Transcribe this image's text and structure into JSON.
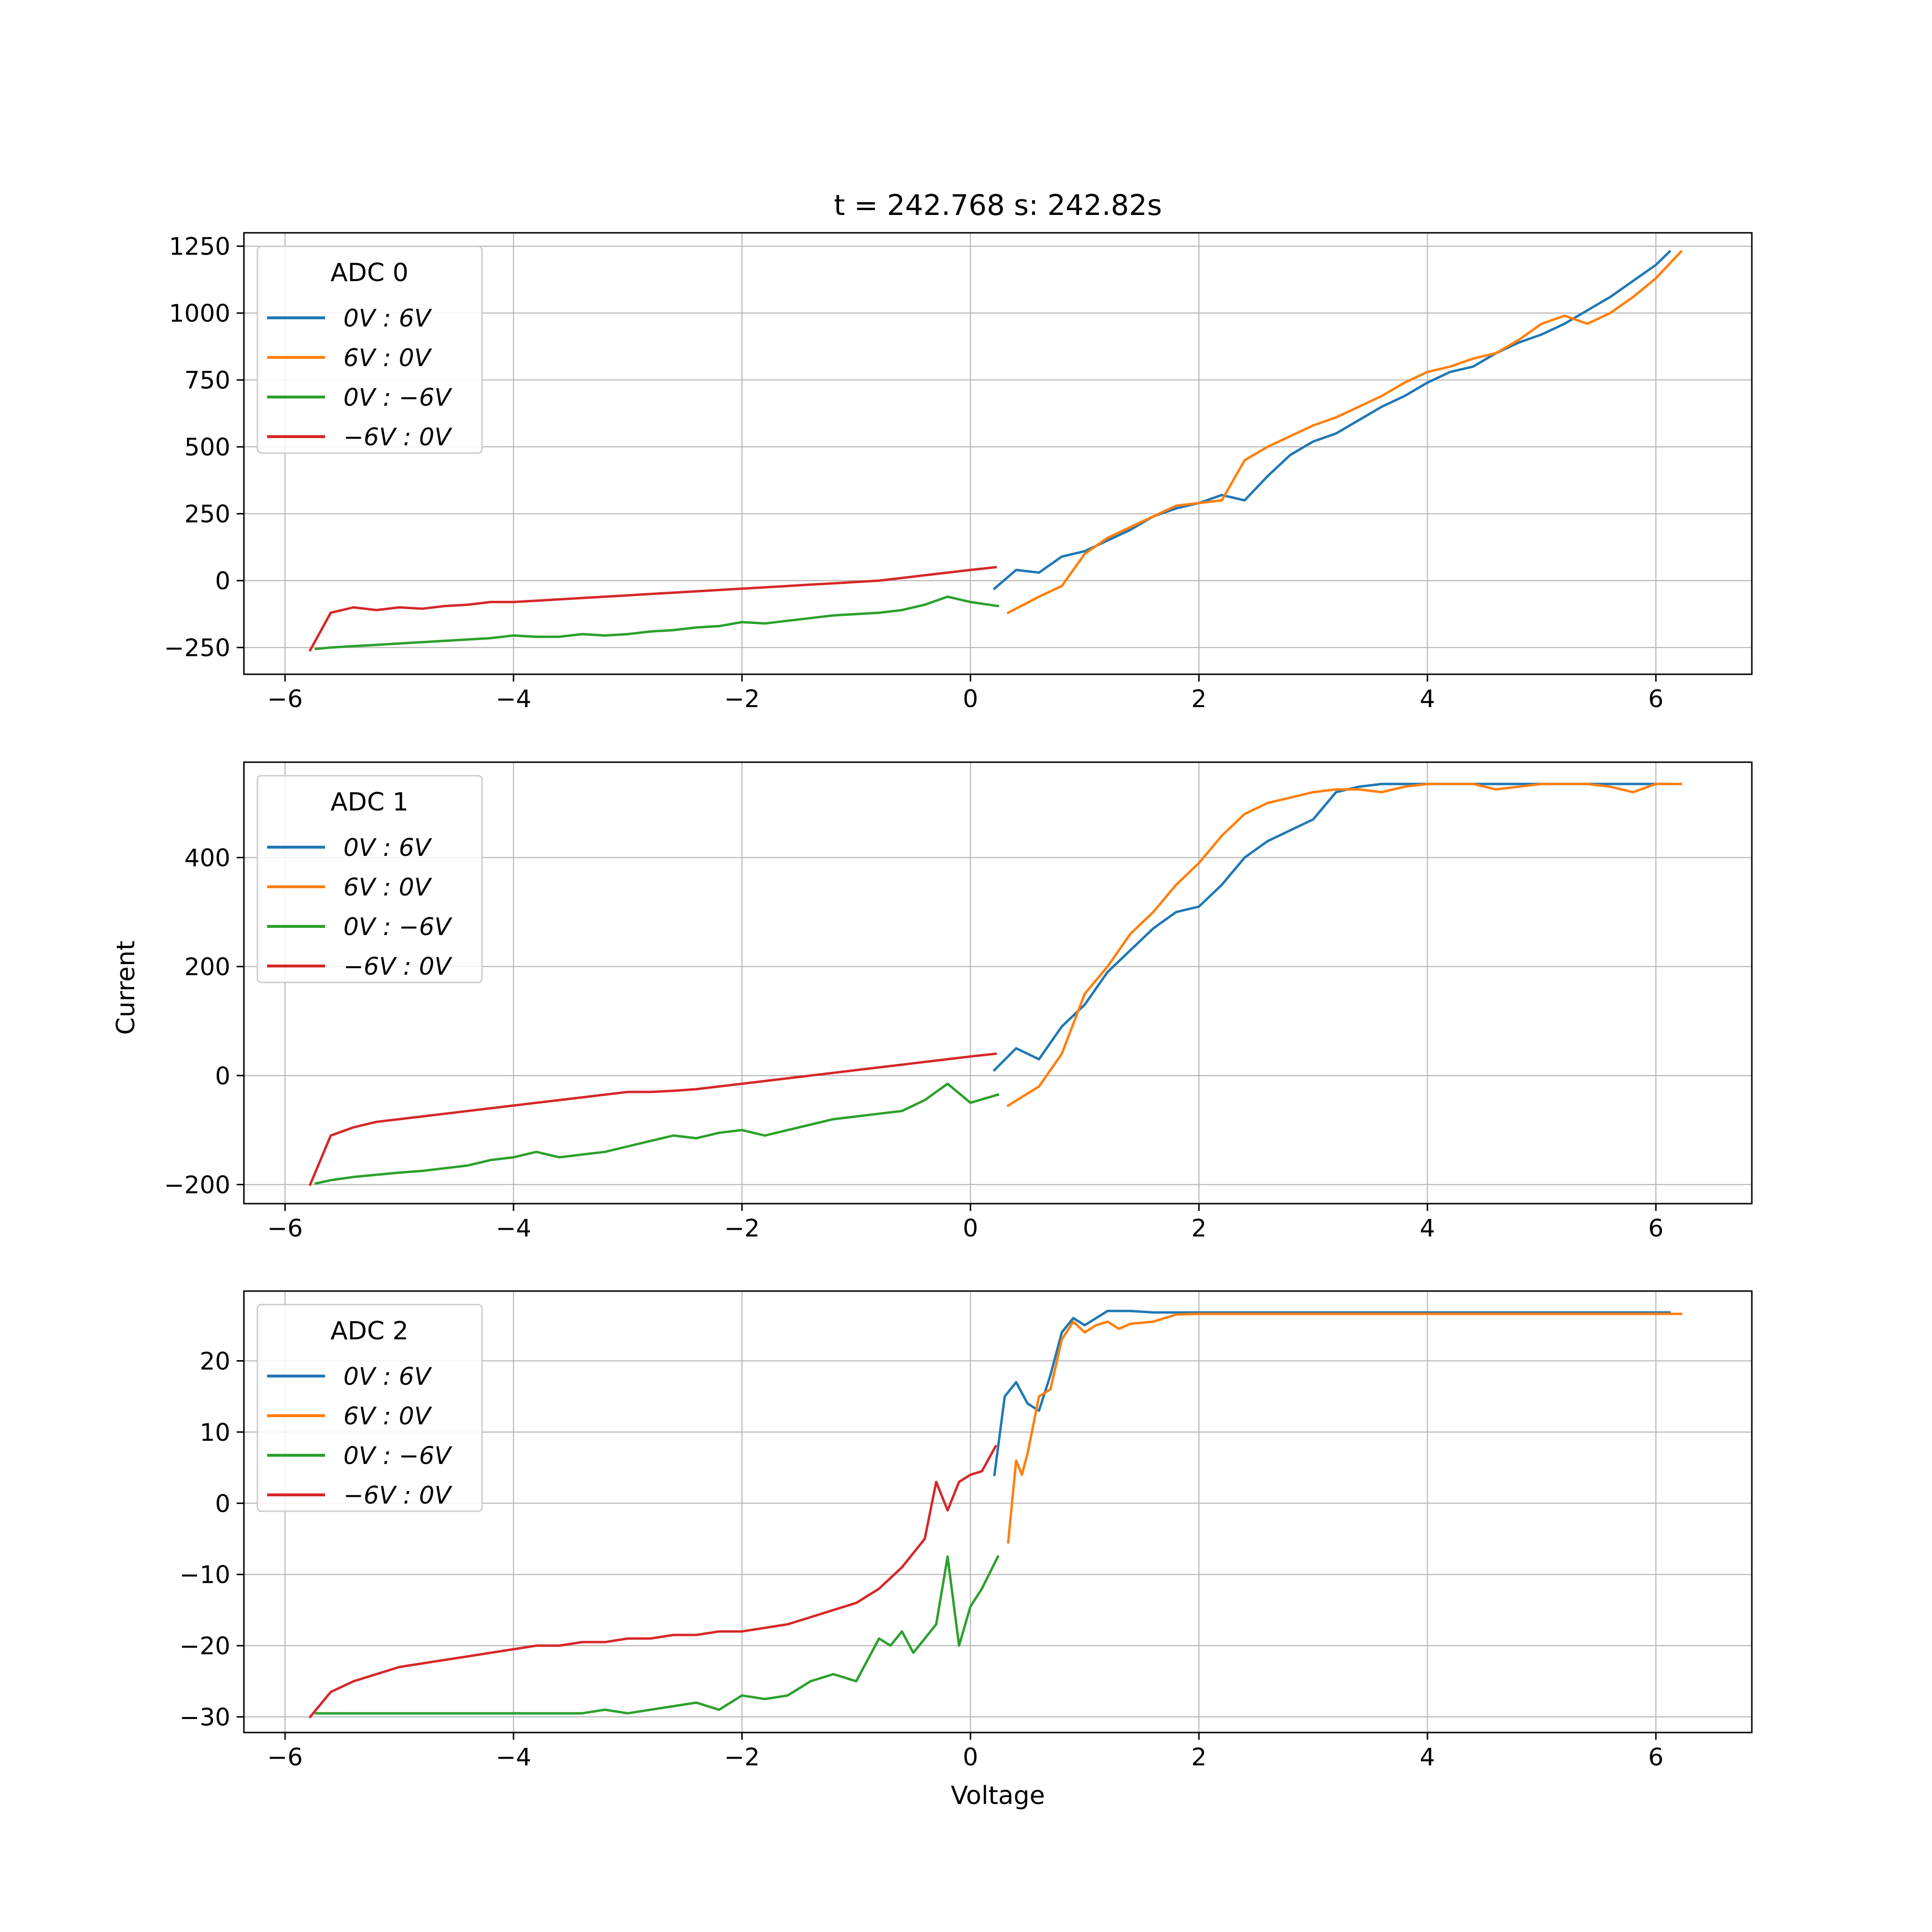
{
  "figure": {
    "title": "t = 242.768 s: 242.82s",
    "xlabel": "Voltage",
    "ylabel": "Current"
  },
  "series_colors": [
    "#1f77b4",
    "#ff7f0e",
    "#2ca02c",
    "#d62728"
  ],
  "chart_data": [
    {
      "type": "line",
      "legend_title": "ADC 0",
      "legend_position": "upper-left",
      "grid": true,
      "xlim": [
        -6.36,
        6.84
      ],
      "ylim": [
        -350,
        1300
      ],
      "xticks": [
        -6,
        -4,
        -2,
        0,
        2,
        4,
        6
      ],
      "xtick_labels": [
        "−6",
        "−4",
        "−2",
        "0",
        "2",
        "4",
        "6"
      ],
      "yticks": [
        -250,
        0,
        250,
        500,
        750,
        1000,
        1250
      ],
      "ytick_labels": [
        "−250",
        "0",
        "250",
        "500",
        "750",
        "1000",
        "1250"
      ],
      "series": [
        {
          "name": "0V : 6V",
          "x": [
            0.21,
            0.4,
            0.6,
            0.8,
            1.0,
            1.2,
            1.4,
            1.6,
            1.8,
            2.0,
            2.2,
            2.4,
            2.6,
            2.8,
            3.0,
            3.2,
            3.4,
            3.6,
            3.8,
            4.0,
            4.2,
            4.4,
            4.6,
            4.8,
            5.0,
            5.2,
            5.4,
            5.6,
            5.8,
            6.0,
            6.12
          ],
          "y": [
            -30,
            40,
            30,
            90,
            110,
            150,
            190,
            240,
            270,
            290,
            320,
            300,
            390,
            470,
            520,
            550,
            600,
            650,
            690,
            740,
            780,
            800,
            850,
            890,
            920,
            960,
            1010,
            1060,
            1120,
            1180,
            1230
          ]
        },
        {
          "name": "6V : 0V",
          "x": [
            6.22,
            6.0,
            5.8,
            5.6,
            5.4,
            5.2,
            5.0,
            4.8,
            4.6,
            4.4,
            4.2,
            4.0,
            3.8,
            3.6,
            3.4,
            3.2,
            3.0,
            2.8,
            2.6,
            2.4,
            2.2,
            2.0,
            1.8,
            1.6,
            1.4,
            1.2,
            1.0,
            0.8,
            0.6,
            0.33
          ],
          "y": [
            1230,
            1130,
            1060,
            1000,
            960,
            990,
            960,
            900,
            850,
            830,
            800,
            780,
            740,
            690,
            650,
            610,
            580,
            540,
            500,
            450,
            300,
            290,
            280,
            240,
            200,
            160,
            100,
            -20,
            -60,
            -120
          ]
        },
        {
          "name": "0V : −6V",
          "x": [
            0.24,
            0.0,
            -0.2,
            -0.4,
            -0.6,
            -0.8,
            -1.0,
            -1.2,
            -1.4,
            -1.6,
            -1.8,
            -2.0,
            -2.2,
            -2.4,
            -2.6,
            -2.8,
            -3.0,
            -3.2,
            -3.4,
            -3.6,
            -3.8,
            -4.0,
            -4.2,
            -4.4,
            -4.6,
            -4.8,
            -5.0,
            -5.2,
            -5.4,
            -5.6,
            -5.73
          ],
          "y": [
            -95,
            -80,
            -60,
            -90,
            -110,
            -120,
            -125,
            -130,
            -140,
            -150,
            -160,
            -155,
            -170,
            -175,
            -185,
            -190,
            -200,
            -205,
            -200,
            -210,
            -210,
            -205,
            -215,
            -220,
            -225,
            -230,
            -235,
            -240,
            -245,
            -250,
            -255
          ]
        },
        {
          "name": "−6V : 0V",
          "x": [
            -5.78,
            -5.6,
            -5.4,
            -5.2,
            -5.0,
            -4.8,
            -4.6,
            -4.4,
            -4.2,
            -4.0,
            -3.8,
            -3.6,
            -3.4,
            -3.2,
            -3.0,
            -2.8,
            -2.6,
            -2.4,
            -2.2,
            -2.0,
            -1.8,
            -1.6,
            -1.4,
            -1.2,
            -1.0,
            -0.8,
            -0.6,
            -0.4,
            -0.2,
            0.0,
            0.22
          ],
          "y": [
            -260,
            -120,
            -100,
            -110,
            -100,
            -105,
            -95,
            -90,
            -80,
            -80,
            -75,
            -70,
            -65,
            -60,
            -55,
            -50,
            -45,
            -40,
            -35,
            -30,
            -25,
            -20,
            -15,
            -10,
            -5,
            0,
            10,
            20,
            30,
            40,
            50
          ]
        }
      ]
    },
    {
      "type": "line",
      "legend_title": "ADC 1",
      "legend_position": "upper-left",
      "grid": true,
      "xlim": [
        -6.36,
        6.84
      ],
      "ylim": [
        -235,
        575
      ],
      "xticks": [
        -6,
        -4,
        -2,
        0,
        2,
        4,
        6
      ],
      "xtick_labels": [
        "−6",
        "−4",
        "−2",
        "0",
        "2",
        "4",
        "6"
      ],
      "yticks": [
        -200,
        0,
        200,
        400
      ],
      "ytick_labels": [
        "−200",
        "0",
        "200",
        "400"
      ],
      "series": [
        {
          "name": "0V : 6V",
          "x": [
            0.21,
            0.4,
            0.6,
            0.8,
            1.0,
            1.2,
            1.4,
            1.6,
            1.8,
            2.0,
            2.2,
            2.4,
            2.6,
            2.8,
            3.0,
            3.2,
            3.4,
            3.6,
            3.8,
            4.0,
            4.2,
            4.4,
            4.6,
            4.8,
            5.0,
            5.2,
            5.4,
            5.6,
            5.8,
            6.0,
            6.12
          ],
          "y": [
            10,
            50,
            30,
            90,
            130,
            190,
            230,
            270,
            300,
            310,
            350,
            400,
            430,
            450,
            470,
            520,
            530,
            535,
            535,
            535,
            535,
            535,
            535,
            535,
            535,
            535,
            535,
            535,
            535,
            535,
            535
          ]
        },
        {
          "name": "6V : 0V",
          "x": [
            6.22,
            6.0,
            5.8,
            5.6,
            5.4,
            5.2,
            5.0,
            4.8,
            4.6,
            4.4,
            4.2,
            4.0,
            3.8,
            3.6,
            3.4,
            3.2,
            3.0,
            2.8,
            2.6,
            2.4,
            2.2,
            2.0,
            1.8,
            1.6,
            1.4,
            1.2,
            1.0,
            0.8,
            0.6,
            0.33
          ],
          "y": [
            535,
            535,
            520,
            530,
            535,
            535,
            535,
            530,
            525,
            535,
            535,
            535,
            530,
            520,
            525,
            525,
            520,
            510,
            500,
            480,
            440,
            390,
            350,
            300,
            260,
            200,
            150,
            40,
            -20,
            -55
          ]
        },
        {
          "name": "0V : −6V",
          "x": [
            0.24,
            0.0,
            -0.2,
            -0.4,
            -0.6,
            -0.8,
            -1.0,
            -1.2,
            -1.4,
            -1.6,
            -1.8,
            -2.0,
            -2.2,
            -2.4,
            -2.6,
            -2.8,
            -3.0,
            -3.2,
            -3.4,
            -3.6,
            -3.8,
            -4.0,
            -4.2,
            -4.4,
            -4.6,
            -4.8,
            -5.0,
            -5.2,
            -5.4,
            -5.6,
            -5.73
          ],
          "y": [
            -35,
            -50,
            -15,
            -45,
            -65,
            -70,
            -75,
            -80,
            -90,
            -100,
            -110,
            -100,
            -105,
            -115,
            -110,
            -120,
            -130,
            -140,
            -145,
            -150,
            -140,
            -150,
            -155,
            -165,
            -170,
            -175,
            -178,
            -182,
            -186,
            -192,
            -198
          ]
        },
        {
          "name": "−6V : 0V",
          "x": [
            -5.78,
            -5.6,
            -5.4,
            -5.2,
            -5.0,
            -4.8,
            -4.6,
            -4.4,
            -4.2,
            -4.0,
            -3.8,
            -3.6,
            -3.4,
            -3.2,
            -3.0,
            -2.8,
            -2.6,
            -2.4,
            -2.2,
            -2.0,
            -1.8,
            -1.6,
            -1.4,
            -1.2,
            -1.0,
            -0.8,
            -0.6,
            -0.4,
            -0.2,
            0.0,
            0.22
          ],
          "y": [
            -200,
            -110,
            -95,
            -85,
            -80,
            -75,
            -70,
            -65,
            -60,
            -55,
            -50,
            -45,
            -40,
            -35,
            -30,
            -30,
            -28,
            -25,
            -20,
            -15,
            -10,
            -5,
            0,
            5,
            10,
            15,
            20,
            25,
            30,
            35,
            40
          ]
        }
      ]
    },
    {
      "type": "line",
      "legend_title": "ADC 2",
      "legend_position": "upper-left",
      "grid": true,
      "xlim": [
        -6.36,
        6.84
      ],
      "ylim": [
        -32.2,
        29.8
      ],
      "xticks": [
        -6,
        -4,
        -2,
        0,
        2,
        4,
        6
      ],
      "xtick_labels": [
        "−6",
        "−4",
        "−2",
        "0",
        "2",
        "4",
        "6"
      ],
      "yticks": [
        -30,
        -20,
        -10,
        0,
        10,
        20
      ],
      "ytick_labels": [
        "−30",
        "−20",
        "−10",
        "0",
        "10",
        "20"
      ],
      "series": [
        {
          "name": "0V : 6V",
          "x": [
            0.21,
            0.3,
            0.4,
            0.5,
            0.6,
            0.7,
            0.8,
            0.9,
            1.0,
            1.1,
            1.2,
            1.4,
            1.6,
            1.8,
            2.0,
            2.5,
            3.0,
            3.5,
            4.0,
            4.5,
            5.0,
            5.5,
            6.0,
            6.12
          ],
          "y": [
            4,
            15,
            17,
            14,
            13,
            18,
            24,
            26,
            25,
            26,
            27,
            27,
            26.8,
            26.8,
            26.8,
            26.8,
            26.8,
            26.8,
            26.8,
            26.8,
            26.8,
            26.8,
            26.8,
            26.8
          ]
        },
        {
          "name": "6V : 0V",
          "x": [
            6.22,
            6.0,
            5.5,
            5.0,
            4.5,
            4.0,
            3.5,
            3.0,
            2.5,
            2.0,
            1.8,
            1.6,
            1.4,
            1.3,
            1.2,
            1.1,
            1.0,
            0.9,
            0.8,
            0.7,
            0.6,
            0.5,
            0.45,
            0.4,
            0.33
          ],
          "y": [
            26.6,
            26.6,
            26.6,
            26.6,
            26.6,
            26.6,
            26.6,
            26.6,
            26.6,
            26.6,
            26.5,
            25.5,
            25.2,
            24.5,
            25.5,
            25,
            24,
            25.5,
            23,
            16,
            15,
            7,
            4,
            6,
            -5.5
          ]
        },
        {
          "name": "0V : −6V",
          "x": [
            0.24,
            0.1,
            0.0,
            -0.1,
            -0.2,
            -0.3,
            -0.4,
            -0.5,
            -0.6,
            -0.7,
            -0.8,
            -1.0,
            -1.2,
            -1.4,
            -1.6,
            -1.8,
            -2.0,
            -2.2,
            -2.4,
            -2.6,
            -2.8,
            -3.0,
            -3.2,
            -3.4,
            -3.6,
            -3.8,
            -4.0,
            -4.2,
            -4.4,
            -4.6,
            -4.8,
            -5.0,
            -5.2,
            -5.4,
            -5.6,
            -5.73
          ],
          "y": [
            -7.5,
            -12,
            -14.5,
            -20,
            -7.5,
            -17,
            -19,
            -21,
            -18,
            -20,
            -19,
            -25,
            -24,
            -25,
            -27,
            -27.5,
            -27,
            -29,
            -28,
            -28.5,
            -29,
            -29.5,
            -29,
            -29.5,
            -29.5,
            -29.5,
            -29.5,
            -29.5,
            -29.5,
            -29.5,
            -29.5,
            -29.5,
            -29.5,
            -29.5,
            -29.5,
            -29.5
          ]
        },
        {
          "name": "−6V : 0V",
          "x": [
            -5.78,
            -5.6,
            -5.4,
            -5.2,
            -5.0,
            -4.8,
            -4.6,
            -4.4,
            -4.2,
            -4.0,
            -3.8,
            -3.6,
            -3.4,
            -3.2,
            -3.0,
            -2.8,
            -2.6,
            -2.4,
            -2.2,
            -2.0,
            -1.8,
            -1.6,
            -1.4,
            -1.2,
            -1.0,
            -0.8,
            -0.6,
            -0.4,
            -0.3,
            -0.2,
            -0.1,
            0.0,
            0.1,
            0.22
          ],
          "y": [
            -30,
            -26.5,
            -25,
            -24,
            -23,
            -22.5,
            -22,
            -21.5,
            -21,
            -20.5,
            -20,
            -20,
            -19.5,
            -19.5,
            -19,
            -19,
            -18.5,
            -18.5,
            -18,
            -18,
            -17.5,
            -17,
            -16,
            -15,
            -14,
            -12,
            -9,
            -5,
            3,
            -1,
            3,
            4,
            4.5,
            8
          ]
        }
      ]
    }
  ]
}
